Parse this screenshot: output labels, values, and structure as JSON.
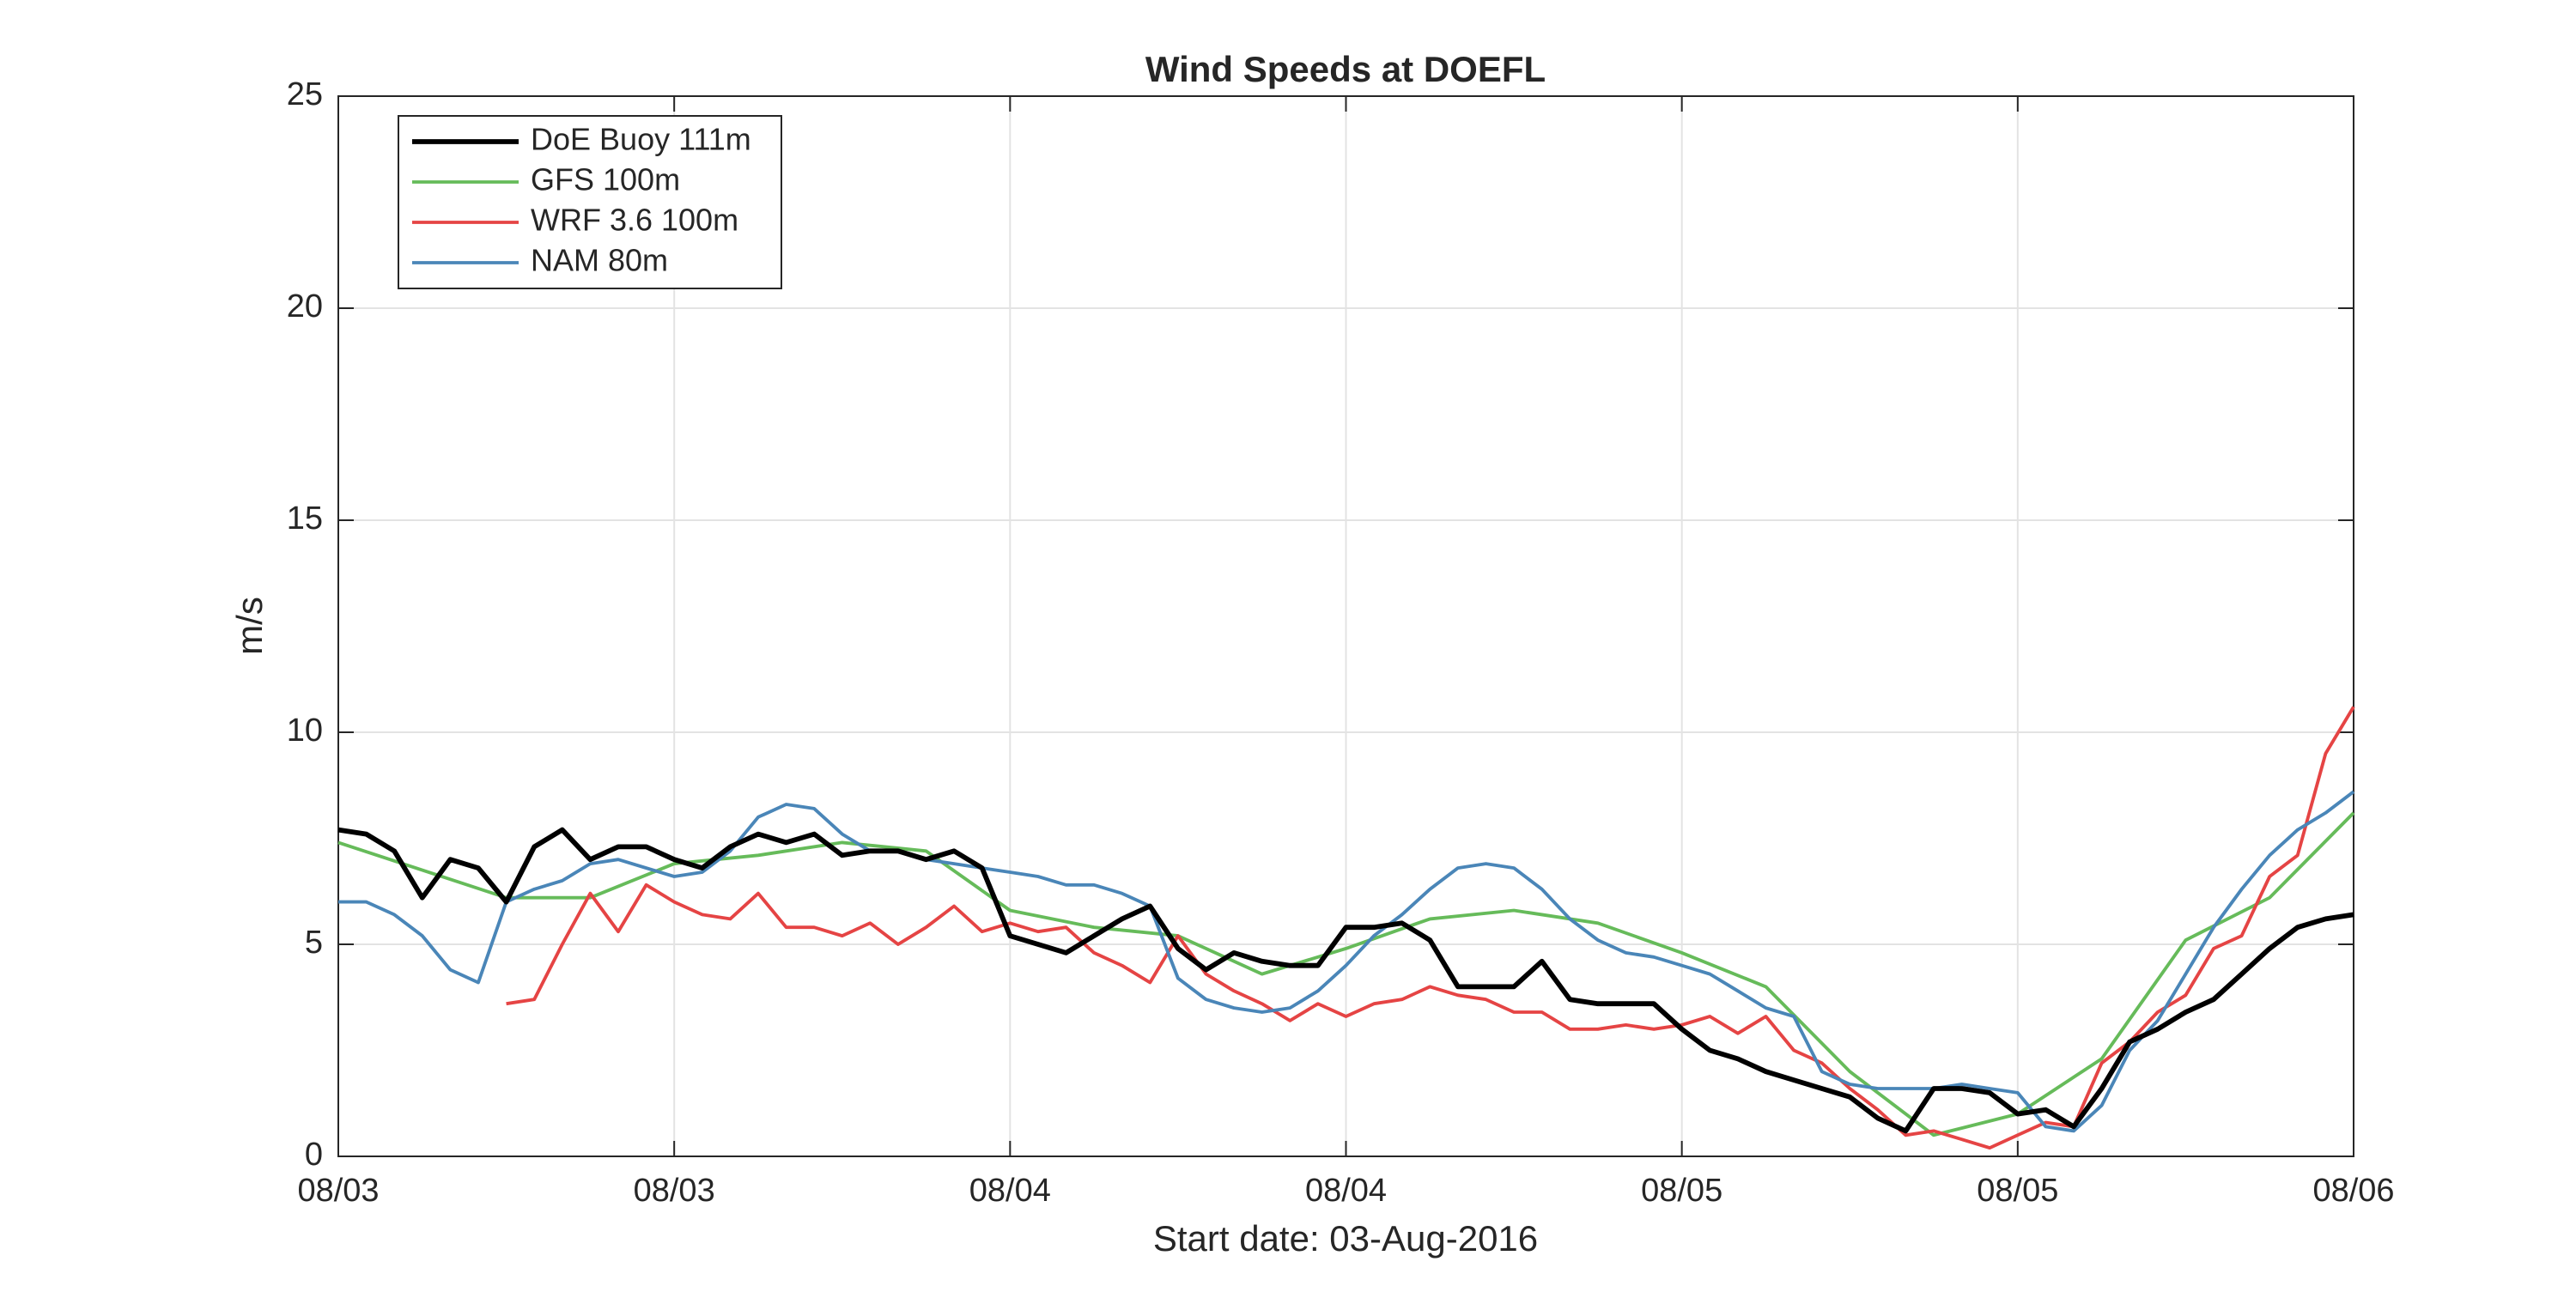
{
  "chart_data": {
    "type": "line",
    "title": "Wind Speeds at DOEFL",
    "xlabel": "Start date: 03-Aug-2016",
    "ylabel": "m/s",
    "xlim": [
      0,
      72
    ],
    "ylim": [
      0,
      25
    ],
    "xticks": [
      {
        "value": 0,
        "label": "08/03"
      },
      {
        "value": 12,
        "label": "08/03"
      },
      {
        "value": 24,
        "label": "08/04"
      },
      {
        "value": 36,
        "label": "08/04"
      },
      {
        "value": 48,
        "label": "08/05"
      },
      {
        "value": 60,
        "label": "08/05"
      },
      {
        "value": 72,
        "label": "08/06"
      }
    ],
    "yticks": [
      0,
      5,
      10,
      15,
      20,
      25
    ],
    "grid": true,
    "legend_loc": "northwest",
    "x": [
      0,
      1,
      2,
      3,
      4,
      5,
      6,
      7,
      8,
      9,
      10,
      11,
      12,
      13,
      14,
      15,
      16,
      17,
      18,
      19,
      20,
      21,
      22,
      23,
      24,
      25,
      26,
      27,
      28,
      29,
      30,
      31,
      32,
      33,
      34,
      35,
      36,
      37,
      38,
      39,
      40,
      41,
      42,
      43,
      44,
      45,
      46,
      47,
      48,
      49,
      50,
      51,
      52,
      53,
      54,
      55,
      56,
      57,
      58,
      59,
      60,
      61,
      62,
      63,
      64,
      65,
      66,
      67,
      68,
      69,
      70,
      71,
      72
    ],
    "series": [
      {
        "name": "DoE Buoy 111m",
        "color": "#000000",
        "width": 3,
        "values": [
          7.7,
          7.6,
          7.2,
          6.1,
          7.0,
          6.8,
          6.0,
          7.3,
          7.7,
          7.0,
          7.3,
          7.3,
          7.0,
          6.8,
          7.3,
          7.6,
          7.4,
          7.6,
          7.1,
          7.2,
          7.2,
          7.0,
          7.2,
          6.8,
          5.2,
          5.0,
          4.8,
          5.2,
          5.6,
          5.9,
          4.9,
          4.4,
          4.8,
          4.6,
          4.5,
          4.5,
          5.4,
          5.4,
          5.5,
          5.1,
          4.0,
          4.0,
          4.0,
          4.6,
          3.7,
          3.6,
          3.6,
          3.6,
          3.0,
          2.5,
          2.3,
          2.0,
          1.8,
          1.6,
          1.4,
          0.9,
          0.6,
          1.6,
          1.6,
          1.5,
          1.0,
          1.1,
          0.7,
          1.6,
          2.7,
          3.0,
          3.4,
          3.7,
          4.3,
          4.9,
          5.4,
          5.6,
          5.7
        ]
      },
      {
        "name": "GFS 100m",
        "color": "#66bb5a",
        "width": 2,
        "x": [
          0,
          6,
          9,
          12,
          15,
          18,
          21,
          24,
          27,
          30,
          33,
          36,
          39,
          42,
          45,
          48,
          51,
          54,
          57,
          60,
          63,
          66,
          69,
          72
        ],
        "values": [
          7.4,
          6.1,
          6.1,
          6.9,
          7.1,
          7.4,
          7.2,
          5.8,
          5.4,
          5.2,
          4.3,
          4.9,
          5.6,
          5.8,
          5.5,
          4.8,
          4.0,
          2.0,
          0.5,
          1.0,
          2.3,
          5.1,
          6.1,
          8.1
        ]
      },
      {
        "name": "WRF 3.6 100m",
        "color": "#e54444",
        "width": 2,
        "values": [
          null,
          null,
          null,
          null,
          null,
          null,
          3.6,
          3.7,
          5.0,
          6.2,
          5.3,
          6.4,
          6.0,
          5.7,
          5.6,
          6.2,
          5.4,
          5.4,
          5.2,
          5.5,
          5.0,
          5.4,
          5.9,
          5.3,
          5.5,
          5.3,
          5.4,
          4.8,
          4.5,
          4.1,
          5.2,
          4.3,
          3.9,
          3.6,
          3.2,
          3.6,
          3.3,
          3.6,
          3.7,
          4.0,
          3.8,
          3.7,
          3.4,
          3.4,
          3.0,
          3.0,
          3.1,
          3.0,
          3.1,
          3.3,
          2.9,
          3.3,
          2.5,
          2.2,
          1.6,
          1.1,
          0.5,
          0.6,
          0.4,
          0.2,
          0.5,
          0.8,
          0.7,
          2.2,
          2.7,
          3.4,
          3.8,
          4.9,
          5.2,
          6.6,
          7.1,
          9.5,
          10.6
        ]
      },
      {
        "name": "NAM 80m",
        "color": "#4a86b8",
        "width": 2,
        "values": [
          6.0,
          6.0,
          5.7,
          5.2,
          4.4,
          4.1,
          6.0,
          6.3,
          6.5,
          6.9,
          7.0,
          6.8,
          6.6,
          6.7,
          7.2,
          8.0,
          8.3,
          8.2,
          7.6,
          7.2,
          7.2,
          7.0,
          6.9,
          6.8,
          6.7,
          6.6,
          6.4,
          6.4,
          6.2,
          5.9,
          4.2,
          3.7,
          3.5,
          3.4,
          3.5,
          3.9,
          4.5,
          5.2,
          5.7,
          6.3,
          6.8,
          6.9,
          6.8,
          6.3,
          5.6,
          5.1,
          4.8,
          4.7,
          4.5,
          4.3,
          3.9,
          3.5,
          3.3,
          2.0,
          1.7,
          1.6,
          1.6,
          1.6,
          1.7,
          1.6,
          1.5,
          0.7,
          0.6,
          1.2,
          2.5,
          3.2,
          4.3,
          5.4,
          6.3,
          7.1,
          7.7,
          8.1,
          8.6
        ]
      }
    ]
  }
}
